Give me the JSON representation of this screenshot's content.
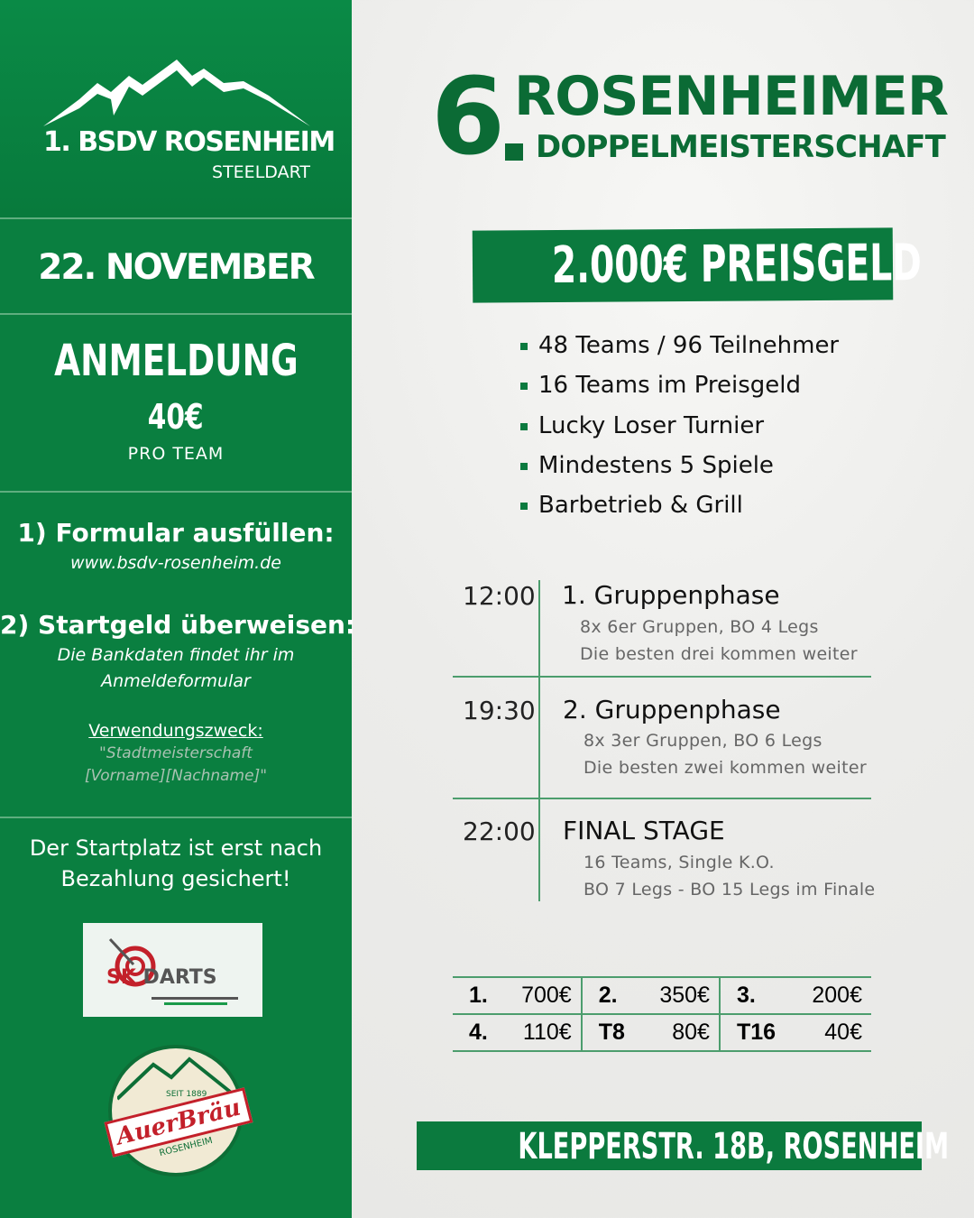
{
  "sidebar": {
    "club_name": "1. BSDV ROSENHEIM",
    "club_sub": "STEELDART",
    "date": "22. NOVEMBER",
    "registration_title": "ANMELDUNG",
    "fee": "40€",
    "fee_unit": "PRO TEAM",
    "step1_title": "1) Formular ausfüllen:",
    "step1_url": "www.bsdv-rosenheim.de",
    "step2_title": "2) Startgeld überweisen:",
    "step2_line1": "Die Bankdaten findet ihr im",
    "step2_line2": "Anmeldeformular",
    "purpose_label": "Verwendungszweck:",
    "purpose_line1": "\"Stadtmeisterschaft",
    "purpose_line2": "[Vorname][Nachname]\"",
    "notice_line1": "Der Startplatz ist erst nach",
    "notice_line2": "Bezahlung gesichert!",
    "sponsor1": "SK DARTS",
    "sponsor2": "AuerBräu",
    "sponsor2_since": "SEIT 1889",
    "sponsor2_city": "ROSENHEIM"
  },
  "header": {
    "number": "6",
    "title1": "ROSENHEIMER",
    "title2": "DOPPELMEISTERSCHAFT"
  },
  "prize_banner": "2.000€ PREISGELD",
  "bullets": [
    "48 Teams / 96 Teilnehmer",
    "16 Teams im Preisgeld",
    "Lucky Loser Turnier",
    "Mindestens 5 Spiele",
    "Barbetrieb & Grill"
  ],
  "schedule": [
    {
      "time": "12:00",
      "title": "1. Gruppenphase",
      "line1": "8x 6er Gruppen, BO 4 Legs",
      "line2": "Die besten drei kommen weiter"
    },
    {
      "time": "19:30",
      "title": "2. Gruppenphase",
      "line1": "8x 3er Gruppen, BO 6 Legs",
      "line2": "Die besten zwei kommen weiter"
    },
    {
      "time": "22:00",
      "title": "FINAL STAGE",
      "line1": "16 Teams, Single K.O.",
      "line2": "BO 7 Legs - BO 15 Legs im Finale"
    }
  ],
  "prizes": [
    [
      {
        "place": "1.",
        "amount": "700€"
      },
      {
        "place": "2.",
        "amount": "350€"
      },
      {
        "place": "3.",
        "amount": "200€"
      }
    ],
    [
      {
        "place": "4.",
        "amount": "110€"
      },
      {
        "place": "T8",
        "amount": "80€"
      },
      {
        "place": "T16",
        "amount": "40€"
      }
    ]
  ],
  "address": "KLEPPERSTR. 18B, ROSENHEIM",
  "colors": {
    "green": "#0a7f40",
    "dark_green": "#0b6b35",
    "background": "#eeeeec"
  }
}
